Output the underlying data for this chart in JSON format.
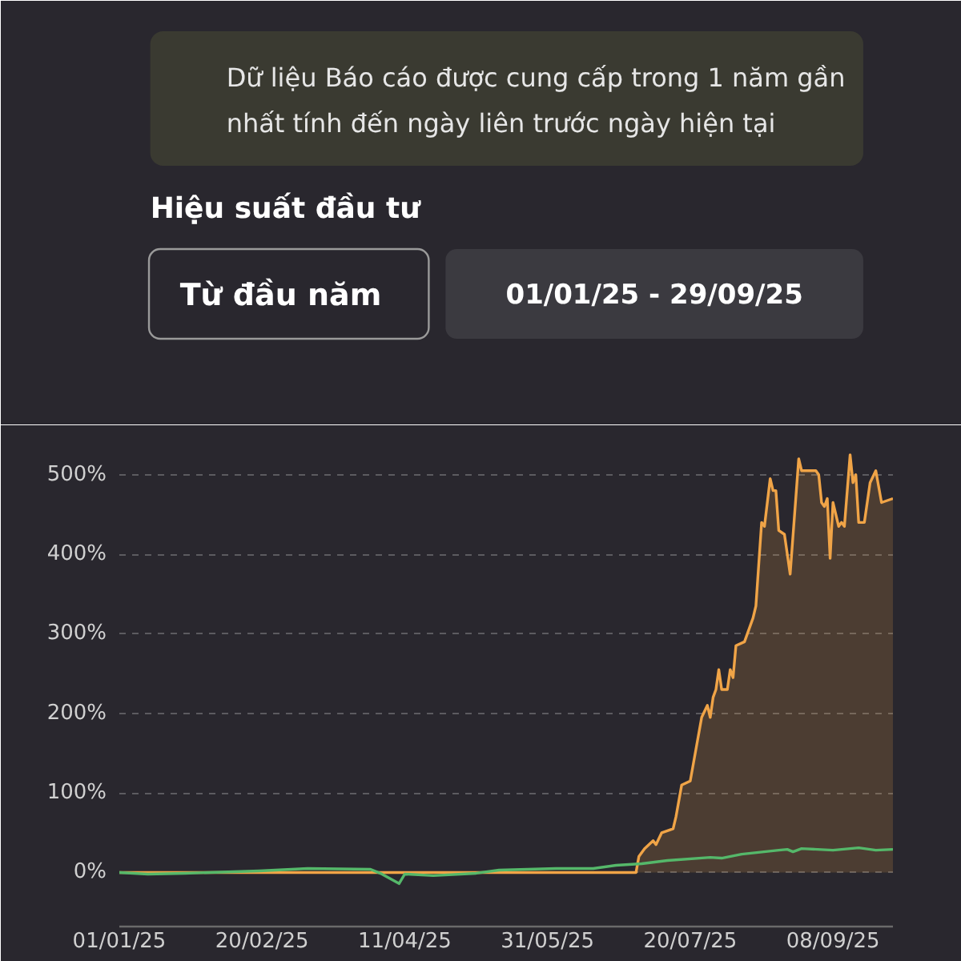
{
  "chart_data": {
    "type": "line",
    "title": "Hiệu suất đầu tư",
    "annotations": [
      "Dữ liệu Báo cáo được cung cấp trong 1 năm gần nhất tính đến ngày liên trước ngày hiện tại",
      "Từ đầu năm",
      "01/01/25 - 29/09/25"
    ],
    "xlim": [
      "2025-01-01",
      "2025-09-29"
    ],
    "xticks": [
      {
        "value": "2025-01-01",
        "label": "01/01/25"
      },
      {
        "value": "2025-02-20",
        "label": "20/02/25"
      },
      {
        "value": "2025-04-11",
        "label": "11/04/25"
      },
      {
        "value": "2025-05-31",
        "label": "31/05/25"
      },
      {
        "value": "2025-07-20",
        "label": "20/07/25"
      },
      {
        "value": "2025-09-08",
        "label": "08/09/25"
      }
    ],
    "ylim": [
      -68,
      540
    ],
    "yticks": [
      {
        "value": 0,
        "label": "0%"
      },
      {
        "value": 100,
        "label": "100%"
      },
      {
        "value": 200,
        "label": "200%"
      },
      {
        "value": 300,
        "label": "300%"
      },
      {
        "value": 400,
        "label": "400%"
      },
      {
        "value": 500,
        "label": "500%"
      }
    ],
    "grid": "y",
    "line_style": "solid",
    "series": [
      {
        "type": "area",
        "color": "#f0a447",
        "x": [
          "2025-01-01",
          "2025-07-01",
          "2025-07-02",
          "2025-07-04",
          "2025-07-07",
          "2025-07-08",
          "2025-07-10",
          "2025-07-14",
          "2025-07-15",
          "2025-07-17",
          "2025-07-20",
          "2025-07-24",
          "2025-07-26",
          "2025-07-27",
          "2025-07-28",
          "2025-07-29",
          "2025-07-30",
          "2025-07-31",
          "2025-08-02",
          "2025-08-03",
          "2025-08-04",
          "2025-08-05",
          "2025-08-08",
          "2025-08-11",
          "2025-08-12",
          "2025-08-14",
          "2025-08-15",
          "2025-08-17",
          "2025-08-18",
          "2025-08-19",
          "2025-08-20",
          "2025-08-22",
          "2025-08-24",
          "2025-08-27",
          "2025-08-28",
          "2025-09-02",
          "2025-09-03",
          "2025-09-04",
          "2025-09-05",
          "2025-09-06",
          "2025-09-07",
          "2025-09-08",
          "2025-09-10",
          "2025-09-11",
          "2025-09-12",
          "2025-09-14",
          "2025-09-15",
          "2025-09-16",
          "2025-09-17",
          "2025-09-19",
          "2025-09-21",
          "2025-09-23",
          "2025-09-25",
          "2025-09-29"
        ],
        "values": [
          0,
          0,
          20,
          30,
          40,
          35,
          50,
          55,
          70,
          110,
          115,
          195,
          210,
          195,
          220,
          230,
          255,
          230,
          230,
          255,
          245,
          285,
          290,
          320,
          335,
          440,
          435,
          495,
          480,
          480,
          430,
          425,
          375,
          520,
          505,
          505,
          500,
          465,
          460,
          470,
          395,
          465,
          435,
          440,
          435,
          525,
          490,
          500,
          440,
          440,
          490,
          505,
          465,
          470
        ]
      },
      {
        "color": "#55b86a",
        "x": [
          "2025-01-01",
          "2025-01-11",
          "2025-01-24",
          "2025-02-19",
          "2025-03-08",
          "2025-03-30",
          "2025-04-03",
          "2025-04-09",
          "2025-04-11",
          "2025-04-21",
          "2025-05-06",
          "2025-05-14",
          "2025-06-03",
          "2025-06-16",
          "2025-06-24",
          "2025-07-03",
          "2025-07-12",
          "2025-07-27",
          "2025-07-31",
          "2025-08-07",
          "2025-08-20",
          "2025-08-23",
          "2025-08-25",
          "2025-08-28",
          "2025-09-08",
          "2025-09-17",
          "2025-09-23",
          "2025-09-29"
        ],
        "values": [
          0,
          -2,
          -1,
          2,
          5,
          4,
          -2,
          -14,
          -2,
          -4,
          -1,
          3,
          5,
          5,
          9,
          11,
          15,
          19,
          18,
          23,
          28,
          29,
          26,
          30,
          28,
          31,
          28,
          29
        ]
      }
    ]
  }
}
